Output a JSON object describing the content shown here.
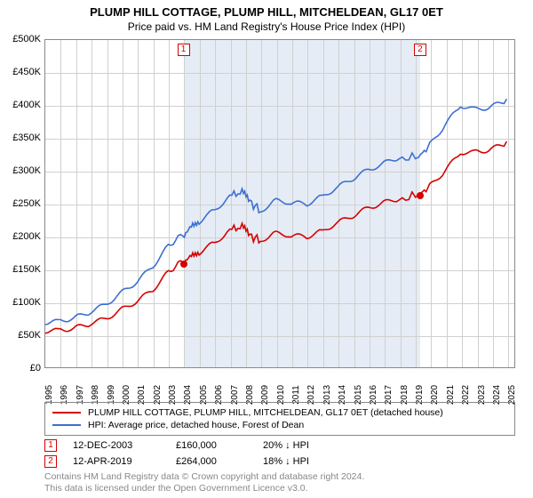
{
  "title": "PLUMP HILL COTTAGE, PLUMP HILL, MITCHELDEAN, GL17 0ET",
  "subtitle": "Price paid vs. HM Land Registry's House Price Index (HPI)",
  "chart": {
    "type": "line",
    "background_color": "#ffffff",
    "grid_color": "#d0d0d0",
    "border_color": "#888888",
    "shade_color": "#e6ecf5",
    "x_years": [
      1995,
      1996,
      1997,
      1998,
      1999,
      2000,
      2001,
      2002,
      2003,
      2004,
      2005,
      2006,
      2007,
      2008,
      2009,
      2010,
      2011,
      2012,
      2013,
      2014,
      2015,
      2016,
      2017,
      2018,
      2019,
      2020,
      2021,
      2022,
      2023,
      2024,
      2025
    ],
    "x_domain": [
      1995,
      2025.5
    ],
    "ylim": [
      0,
      500000
    ],
    "ytick_step": 50000,
    "y_ticks": [
      "£0",
      "£50K",
      "£100K",
      "£150K",
      "£200K",
      "£250K",
      "£300K",
      "£350K",
      "£400K",
      "£450K",
      "£500K"
    ],
    "shade_start_year": 2003.95,
    "shade_end_year": 2019.28,
    "series": [
      {
        "name": "property",
        "color": "#d40000",
        "line_width": 1.6,
        "points": [
          [
            1995,
            55000
          ],
          [
            1996,
            58000
          ],
          [
            1997,
            62000
          ],
          [
            1998,
            70000
          ],
          [
            1999,
            78000
          ],
          [
            2000,
            92000
          ],
          [
            2001,
            105000
          ],
          [
            2002,
            122000
          ],
          [
            2003,
            148000
          ],
          [
            2003.95,
            160000
          ],
          [
            2004.5,
            170000
          ],
          [
            2005,
            178000
          ],
          [
            2006,
            192000
          ],
          [
            2007,
            210000
          ],
          [
            2007.8,
            215000
          ],
          [
            2008.3,
            200000
          ],
          [
            2009,
            195000
          ],
          [
            2010,
            205000
          ],
          [
            2011,
            200000
          ],
          [
            2012,
            198000
          ],
          [
            2013,
            205000
          ],
          [
            2014,
            218000
          ],
          [
            2015,
            228000
          ],
          [
            2016,
            240000
          ],
          [
            2017,
            248000
          ],
          [
            2018,
            255000
          ],
          [
            2019.28,
            264000
          ],
          [
            2020,
            275000
          ],
          [
            2021,
            300000
          ],
          [
            2022,
            328000
          ],
          [
            2023,
            330000
          ],
          [
            2024,
            335000
          ],
          [
            2025,
            345000
          ]
        ]
      },
      {
        "name": "hpi",
        "color": "#3b6fd1",
        "line_width": 1.6,
        "points": [
          [
            1995,
            68000
          ],
          [
            1996,
            72000
          ],
          [
            1997,
            78000
          ],
          [
            1998,
            88000
          ],
          [
            1999,
            100000
          ],
          [
            2000,
            118000
          ],
          [
            2001,
            135000
          ],
          [
            2002,
            158000
          ],
          [
            2003,
            188000
          ],
          [
            2003.95,
            200000
          ],
          [
            2004.5,
            215000
          ],
          [
            2005,
            225000
          ],
          [
            2006,
            242000
          ],
          [
            2007,
            262000
          ],
          [
            2007.8,
            268000
          ],
          [
            2008.3,
            252000
          ],
          [
            2009,
            240000
          ],
          [
            2010,
            255000
          ],
          [
            2011,
            250000
          ],
          [
            2012,
            248000
          ],
          [
            2013,
            258000
          ],
          [
            2014,
            272000
          ],
          [
            2015,
            285000
          ],
          [
            2016,
            298000
          ],
          [
            2017,
            308000
          ],
          [
            2018,
            318000
          ],
          [
            2019.28,
            322000
          ],
          [
            2020,
            338000
          ],
          [
            2021,
            370000
          ],
          [
            2022,
            400000
          ],
          [
            2023,
            395000
          ],
          [
            2024,
            400000
          ],
          [
            2025,
            410000
          ]
        ]
      }
    ],
    "sale_dots": [
      {
        "year": 2003.95,
        "value": 160000,
        "color": "#d40000"
      },
      {
        "year": 2019.28,
        "value": 264000,
        "color": "#d40000"
      }
    ],
    "markers": [
      {
        "n": "1",
        "year": 2003.95,
        "color": "#d40000"
      },
      {
        "n": "2",
        "year": 2019.28,
        "color": "#d40000"
      }
    ]
  },
  "legend": {
    "items": [
      {
        "color": "#d40000",
        "label": "PLUMP HILL COTTAGE, PLUMP HILL, MITCHELDEAN, GL17 0ET (detached house)"
      },
      {
        "color": "#3b6fd1",
        "label": "HPI: Average price, detached house, Forest of Dean"
      }
    ]
  },
  "sales": [
    {
      "n": "1",
      "color": "#d40000",
      "date": "12-DEC-2003",
      "price": "£160,000",
      "pct": "20% ↓ HPI"
    },
    {
      "n": "2",
      "color": "#d40000",
      "date": "12-APR-2019",
      "price": "£264,000",
      "pct": "18% ↓ HPI"
    }
  ],
  "copyright": {
    "line1": "Contains HM Land Registry data © Crown copyright and database right 2024.",
    "line2": "This data is licensed under the Open Government Licence v3.0."
  }
}
